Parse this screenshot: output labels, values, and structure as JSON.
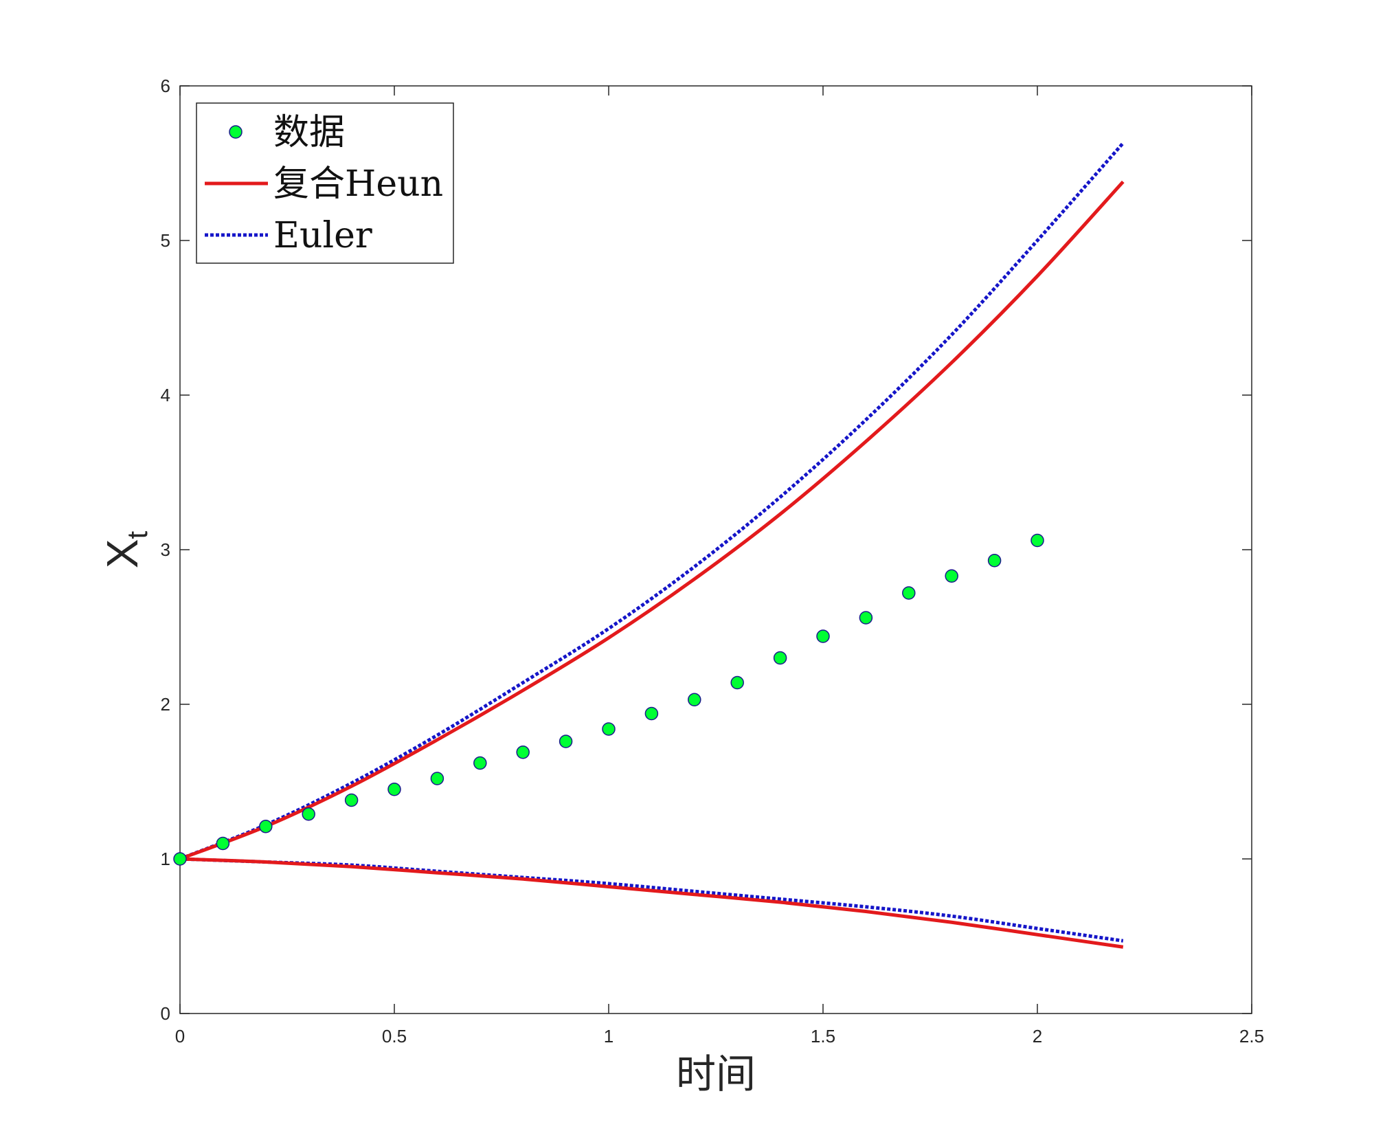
{
  "chart_data": {
    "type": "line",
    "xlabel": "时间",
    "ylabel": {
      "main": "X",
      "sub": "t"
    },
    "xlim": [
      0,
      2.5
    ],
    "ylim": [
      0,
      6
    ],
    "xticks": [
      "0",
      "0.5",
      "1",
      "1.5",
      "2",
      "2.5"
    ],
    "yticks": [
      "0",
      "1",
      "2",
      "3",
      "4",
      "5",
      "6"
    ],
    "grid": false,
    "legend_position": "top-left",
    "legend": [
      {
        "label": "数据",
        "marker": "circle",
        "color": "#00ff33"
      },
      {
        "label": "复合Heun",
        "style": "solid",
        "color": "#e31a1c"
      },
      {
        "label": "Euler",
        "style": "dotted",
        "color": "#1515c8"
      }
    ],
    "data_points": {
      "name": "数据",
      "x": [
        0,
        0.1,
        0.2,
        0.3,
        0.4,
        0.5,
        0.6,
        0.7,
        0.8,
        0.9,
        1.0,
        1.1,
        1.2,
        1.3,
        1.4,
        1.5,
        1.6,
        1.7,
        1.8,
        1.9,
        2.0
      ],
      "y": [
        1.0,
        1.1,
        1.21,
        1.29,
        1.38,
        1.45,
        1.52,
        1.62,
        1.69,
        1.76,
        1.84,
        1.94,
        2.03,
        2.14,
        2.3,
        2.44,
        2.56,
        2.72,
        2.83,
        2.93,
        3.06
      ]
    },
    "x": [
      0,
      0.2,
      0.4,
      0.6,
      0.8,
      1.0,
      1.2,
      1.4,
      1.6,
      1.8,
      2.0,
      2.2
    ],
    "series": [
      {
        "name": "复合Heun",
        "curve": "upper",
        "color": "#e31a1c",
        "style": "solid",
        "values": [
          1.0,
          1.21,
          1.47,
          1.77,
          2.09,
          2.43,
          2.81,
          3.23,
          3.7,
          4.21,
          4.77,
          5.38
        ]
      },
      {
        "name": "复合Heun",
        "curve": "lower",
        "color": "#e31a1c",
        "style": "solid",
        "values": [
          1.0,
          0.98,
          0.95,
          0.91,
          0.87,
          0.82,
          0.77,
          0.72,
          0.66,
          0.59,
          0.51,
          0.43
        ]
      },
      {
        "name": "Euler",
        "curve": "upper",
        "color": "#1515c8",
        "style": "dotted",
        "values": [
          1.0,
          1.22,
          1.49,
          1.8,
          2.14,
          2.49,
          2.89,
          3.34,
          3.84,
          4.39,
          5.0,
          5.63
        ]
      },
      {
        "name": "Euler",
        "curve": "lower",
        "color": "#1515c8",
        "style": "dotted",
        "values": [
          1.0,
          0.98,
          0.96,
          0.92,
          0.88,
          0.84,
          0.79,
          0.74,
          0.69,
          0.63,
          0.55,
          0.47
        ]
      }
    ]
  }
}
